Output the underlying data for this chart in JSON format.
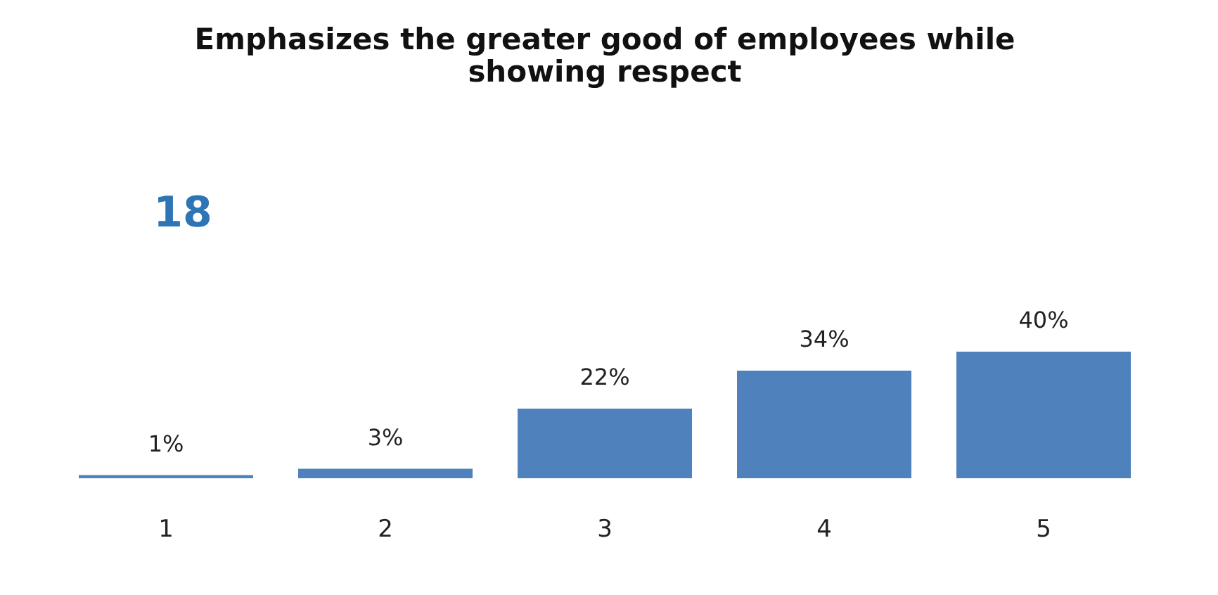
{
  "chart_data": {
    "type": "bar",
    "title": "Emphasizes the greater good of employees while showing respect",
    "categories": [
      "1",
      "2",
      "3",
      "4",
      "5"
    ],
    "values": [
      1,
      3,
      22,
      34,
      40
    ],
    "color": "#4f81bd",
    "value_labels": [
      "1%",
      "3%",
      "22%",
      "34%",
      "40%"
    ],
    "annotations": [
      "18"
    ]
  }
}
